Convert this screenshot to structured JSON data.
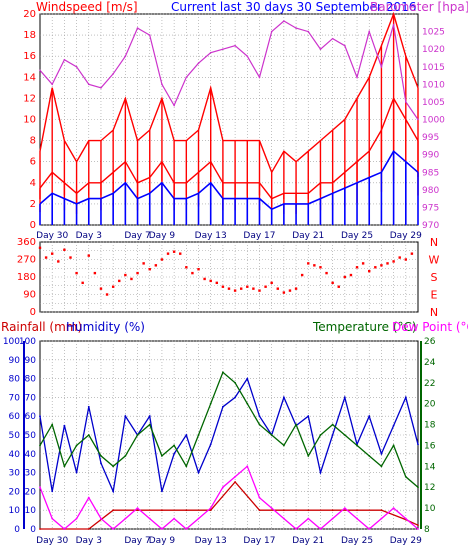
{
  "colors": {
    "wind": "#ff0000",
    "gust": "#ff0000",
    "avg": "#0000ff",
    "baro": "#cc33cc",
    "dir": "#ff0000",
    "rain": "#cc0000",
    "hum": "#0000cc",
    "temp": "#006600",
    "dew": "#ff00ff",
    "grid": "#9a9a9a",
    "frame": "#000000"
  },
  "titles": {
    "windspeed": "Windspeed [m/s]",
    "current": "Current last 30 days 30 September 2016",
    "barometer": "Barometer [hpa]",
    "rainfall": "Rainfall (mm)",
    "humidity": "Humidity (%)",
    "temperature": "Temperature (°C)",
    "dewpoint": "Dew Point (°C)"
  },
  "chart_data": [
    {
      "type": "line",
      "xlabels": [
        "Day 30",
        "Day 3",
        "Day 7",
        "Day 9",
        "Day 13",
        "Day 17",
        "Day 21",
        "Day 25",
        "Day 29"
      ],
      "xlabel_pos": [
        1,
        4,
        8,
        10,
        14,
        18,
        22,
        26,
        30
      ],
      "xlim": [
        0,
        31
      ],
      "y_left": {
        "label": "Windspeed [m/s]",
        "ylim": [
          0,
          20
        ],
        "ticks": [
          0,
          2,
          4,
          6,
          8,
          10,
          12,
          14,
          16,
          18,
          20
        ]
      },
      "y_right": {
        "label": "Barometer [hpa]",
        "ylim": [
          970,
          1030
        ],
        "ticks": [
          970,
          975,
          980,
          985,
          990,
          995,
          1000,
          1005,
          1010,
          1015,
          1020,
          1025
        ]
      },
      "series": [
        {
          "axis": "left",
          "role": "wind",
          "x": [
            0,
            1,
            2,
            3,
            4,
            5,
            6,
            7,
            8,
            9,
            10,
            11,
            12,
            13,
            14,
            15,
            16,
            17,
            18,
            19,
            20,
            21,
            22,
            23,
            24,
            25,
            26,
            27,
            28,
            29,
            30,
            31
          ],
          "values": [
            3.5,
            5,
            4,
            3,
            4,
            4,
            5,
            6,
            4,
            4.5,
            6,
            4,
            4,
            5,
            6,
            4,
            4,
            4,
            4,
            2.5,
            3,
            3,
            3,
            4,
            4,
            5,
            6,
            7,
            9,
            12,
            10,
            8
          ]
        },
        {
          "axis": "left",
          "role": "gust",
          "x": [
            0,
            1,
            2,
            3,
            4,
            5,
            6,
            7,
            8,
            9,
            10,
            11,
            12,
            13,
            14,
            15,
            16,
            17,
            18,
            19,
            20,
            21,
            22,
            23,
            24,
            25,
            26,
            27,
            28,
            29,
            30,
            31
          ],
          "values": [
            7,
            13,
            8,
            6,
            8,
            8,
            9,
            12,
            8,
            9,
            12,
            8,
            8,
            9,
            13,
            8,
            8,
            8,
            8,
            5,
            7,
            6,
            7,
            8,
            9,
            10,
            12,
            14,
            17,
            20,
            16,
            13
          ]
        },
        {
          "axis": "left",
          "role": "avg",
          "x": [
            0,
            1,
            2,
            3,
            4,
            5,
            6,
            7,
            8,
            9,
            10,
            11,
            12,
            13,
            14,
            15,
            16,
            17,
            18,
            19,
            20,
            21,
            22,
            23,
            24,
            25,
            26,
            27,
            28,
            29,
            30,
            31
          ],
          "values": [
            2,
            3,
            2.5,
            2,
            2.5,
            2.5,
            3,
            4,
            2.5,
            3,
            4,
            2.5,
            2.5,
            3,
            4,
            2.5,
            2.5,
            2.5,
            2.5,
            1.5,
            2,
            2,
            2,
            2.5,
            3,
            3.5,
            4,
            4.5,
            5,
            7,
            6,
            5
          ]
        },
        {
          "axis": "right",
          "role": "baro",
          "x": [
            0,
            1,
            2,
            3,
            4,
            5,
            6,
            7,
            8,
            9,
            10,
            11,
            12,
            13,
            14,
            15,
            16,
            17,
            18,
            19,
            20,
            21,
            22,
            23,
            24,
            25,
            26,
            27,
            28,
            29,
            30,
            31
          ],
          "values": [
            1014,
            1010,
            1017,
            1015,
            1010,
            1009,
            1013,
            1018,
            1026,
            1024,
            1010,
            1004,
            1012,
            1016,
            1019,
            1020,
            1021,
            1018,
            1012,
            1025,
            1028,
            1026,
            1025,
            1020,
            1023,
            1021,
            1012,
            1025,
            1015,
            1027,
            1005,
            1000
          ]
        }
      ]
    },
    {
      "type": "scatter",
      "title": "",
      "xlim": [
        0,
        31
      ],
      "y": {
        "ylim": [
          0,
          360
        ],
        "ticks": [
          0,
          45,
          90,
          135,
          180,
          225,
          270,
          315,
          360
        ],
        "right_labels": [
          "N",
          "W",
          "S",
          "E",
          "N"
        ]
      },
      "series": [
        {
          "role": "dir",
          "x": [
            0,
            0.5,
            1,
            1.5,
            2,
            2.5,
            3,
            3.5,
            4,
            4.5,
            5,
            5.5,
            6,
            6.5,
            7,
            7.5,
            8,
            8.5,
            9,
            9.5,
            10,
            10.5,
            11,
            11.5,
            12,
            12.5,
            13,
            13.5,
            14,
            14.5,
            15,
            15.5,
            16,
            16.5,
            17,
            17.5,
            18,
            18.5,
            19,
            19.5,
            20,
            20.5,
            21,
            21.5,
            22,
            22.5,
            23,
            23.5,
            24,
            24.5,
            25,
            25.5,
            26,
            26.5,
            27,
            27.5,
            28,
            28.5,
            29,
            29.5,
            30,
            30.5
          ],
          "values": [
            330,
            280,
            300,
            260,
            320,
            280,
            200,
            150,
            290,
            200,
            120,
            90,
            130,
            160,
            190,
            170,
            200,
            250,
            220,
            240,
            270,
            300,
            310,
            300,
            230,
            200,
            220,
            170,
            160,
            150,
            130,
            120,
            110,
            120,
            130,
            120,
            110,
            130,
            150,
            120,
            100,
            110,
            120,
            190,
            250,
            240,
            230,
            200,
            150,
            130,
            180,
            190,
            230,
            250,
            210,
            230,
            240,
            250,
            260,
            280,
            270,
            300
          ]
        }
      ]
    },
    {
      "type": "line",
      "xlabels": [
        "Day 30",
        "Day 3",
        "Day 7",
        "Day 9",
        "Day 13",
        "Day 17",
        "Day 21",
        "Day 25",
        "Day 29"
      ],
      "xlabel_pos": [
        1,
        4,
        8,
        10,
        14,
        18,
        22,
        26,
        30
      ],
      "xlim": [
        0,
        31
      ],
      "y_left": {
        "label": "Rainfall (mm) / Humidity (%)",
        "ylim": [
          0,
          100
        ],
        "ticks": [
          0,
          10,
          20,
          30,
          40,
          50,
          60,
          70,
          80,
          90,
          100
        ]
      },
      "y_right": {
        "label": "Temperature (°C) / Dew Point (°C)",
        "ylim": [
          8,
          26
        ],
        "ticks": [
          8,
          10,
          12,
          14,
          16,
          18,
          20,
          22,
          24,
          26
        ]
      },
      "series": [
        {
          "axis": "left",
          "role": "hum",
          "x": [
            0,
            1,
            2,
            3,
            4,
            5,
            6,
            7,
            8,
            9,
            10,
            11,
            12,
            13,
            14,
            15,
            16,
            17,
            18,
            19,
            20,
            21,
            22,
            23,
            24,
            25,
            26,
            27,
            28,
            29,
            30,
            31
          ],
          "values": [
            60,
            20,
            55,
            30,
            65,
            35,
            20,
            60,
            50,
            60,
            20,
            40,
            50,
            30,
            45,
            65,
            70,
            80,
            60,
            50,
            70,
            55,
            60,
            30,
            50,
            70,
            45,
            60,
            40,
            55,
            70,
            45
          ]
        },
        {
          "axis": "left",
          "role": "rain",
          "x": [
            0,
            2,
            4,
            6,
            8,
            10,
            12,
            14,
            16,
            18,
            20,
            22,
            24,
            26,
            28,
            30,
            31
          ],
          "values": [
            0,
            0,
            0,
            10,
            10,
            10,
            10,
            10,
            25,
            10,
            10,
            10,
            10,
            10,
            10,
            5,
            2
          ]
        },
        {
          "axis": "right",
          "role": "temp",
          "x": [
            0,
            1,
            2,
            3,
            4,
            5,
            6,
            7,
            8,
            9,
            10,
            11,
            12,
            13,
            14,
            15,
            16,
            17,
            18,
            19,
            20,
            21,
            22,
            23,
            24,
            25,
            26,
            27,
            28,
            29,
            30,
            31
          ],
          "values": [
            16,
            18,
            14,
            16,
            17,
            15,
            14,
            15,
            17,
            18,
            15,
            16,
            14,
            17,
            20,
            23,
            22,
            20,
            18,
            17,
            16,
            18,
            15,
            17,
            18,
            17,
            16,
            15,
            14,
            16,
            13,
            12
          ]
        },
        {
          "axis": "right",
          "role": "dew",
          "x": [
            0,
            1,
            2,
            3,
            4,
            5,
            6,
            7,
            8,
            9,
            10,
            11,
            12,
            13,
            14,
            15,
            16,
            17,
            18,
            19,
            20,
            21,
            22,
            23,
            24,
            25,
            26,
            27,
            28,
            29,
            30,
            31
          ],
          "values": [
            12,
            9,
            8,
            9,
            11,
            9,
            8,
            9,
            10,
            9,
            8,
            9,
            8,
            9,
            10,
            12,
            13,
            14,
            11,
            10,
            9,
            8,
            9,
            8,
            9,
            10,
            9,
            8,
            9,
            10,
            9,
            8
          ]
        }
      ]
    }
  ]
}
